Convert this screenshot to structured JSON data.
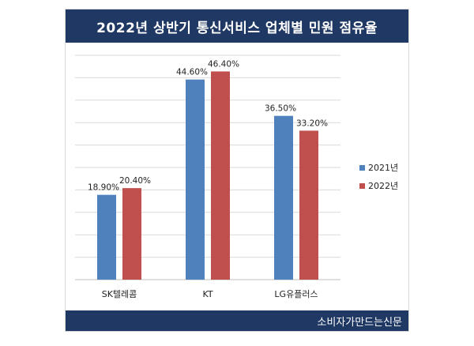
{
  "header": {
    "title": "2022년 상반기 통신서비스 업체별 민원 점유율"
  },
  "footer": {
    "source": "소비자가만드는신문"
  },
  "chart_data": {
    "type": "bar",
    "title": "2022년 상반기 통신서비스 업체별 민원 점유율",
    "categories": [
      "SK텔레콤",
      "KT",
      "LG유플러스"
    ],
    "series": [
      {
        "name": "2021년",
        "values": [
          18.9,
          44.6,
          36.5
        ],
        "labels": [
          "18.90%",
          "44.60%",
          "36.50%"
        ],
        "color": "#4f81bd"
      },
      {
        "name": "2022년",
        "values": [
          20.4,
          46.4,
          33.2
        ],
        "labels": [
          "20.40%",
          "46.40%",
          "33.20%"
        ],
        "color": "#c0504d"
      }
    ],
    "ylim": [
      0,
      50
    ],
    "grid": true,
    "legend": "right"
  }
}
